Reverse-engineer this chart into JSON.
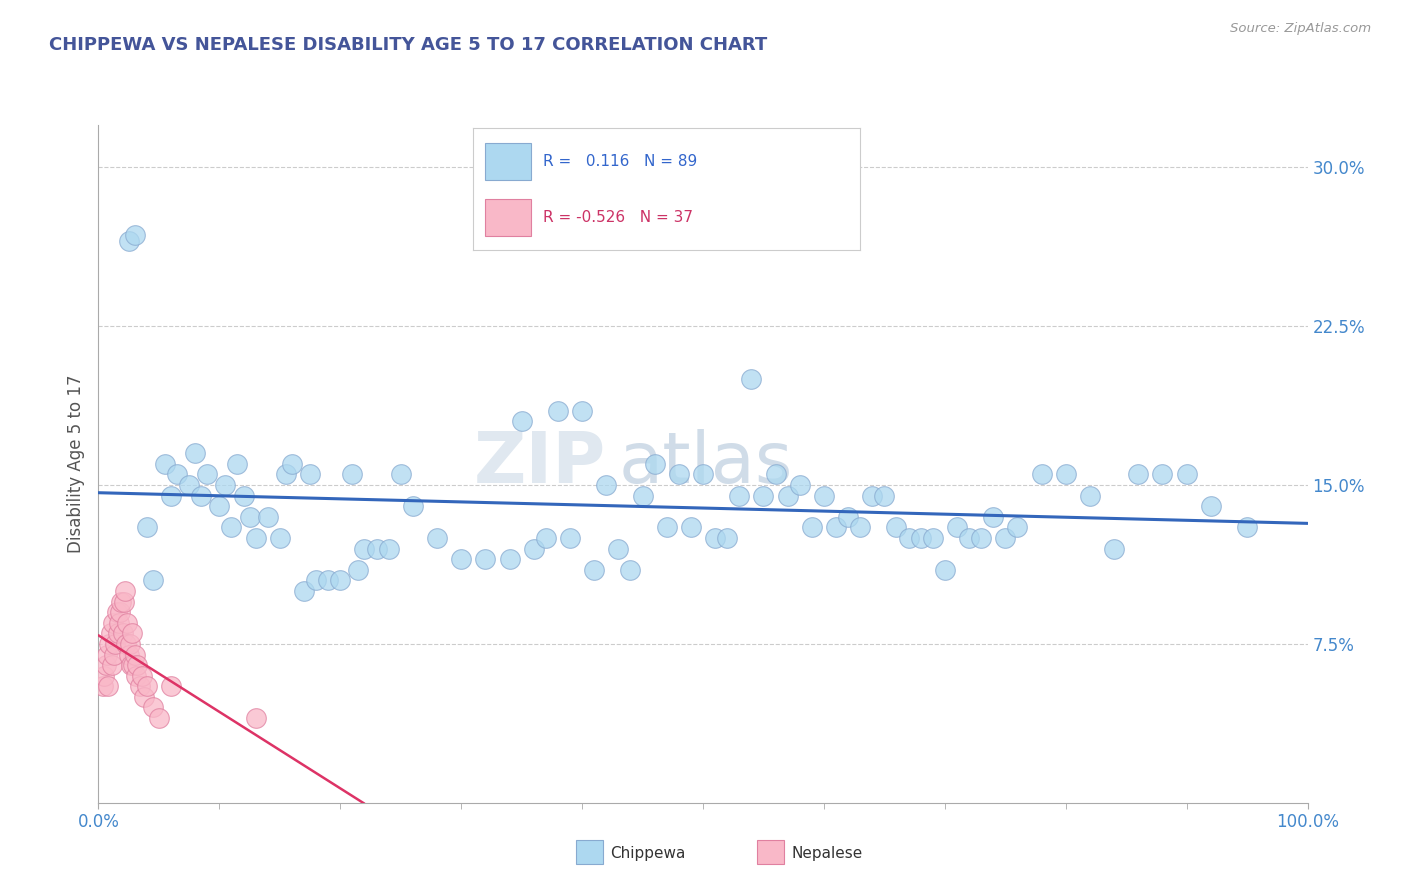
{
  "title": "CHIPPEWA VS NEPALESE DISABILITY AGE 5 TO 17 CORRELATION CHART",
  "source_text": "Source: ZipAtlas.com",
  "ylabel": "Disability Age 5 to 17",
  "xlim": [
    0.0,
    1.0
  ],
  "ylim": [
    0.0,
    0.32
  ],
  "ytick_vals": [
    0.075,
    0.15,
    0.225,
    0.3
  ],
  "ytick_labels": [
    "7.5%",
    "15.0%",
    "22.5%",
    "30.0%"
  ],
  "xtick_vals": [
    0.0,
    1.0
  ],
  "xtick_labels": [
    "0.0%",
    "100.0%"
  ],
  "legend_R_chippewa": "0.116",
  "legend_N_chippewa": "89",
  "legend_R_nepalese": "-0.526",
  "legend_N_nepalese": "37",
  "chippewa_color": "#add8f0",
  "nepalese_color": "#f9b8c8",
  "trendline_chippewa_color": "#3366bb",
  "trendline_nepalese_color": "#dd3366",
  "background_color": "#ffffff",
  "grid_color": "#cccccc",
  "watermark_color": "#e0e8f0",
  "chippewa_x": [
    0.025,
    0.03,
    0.04,
    0.045,
    0.055,
    0.06,
    0.065,
    0.075,
    0.08,
    0.085,
    0.09,
    0.1,
    0.105,
    0.11,
    0.115,
    0.12,
    0.125,
    0.13,
    0.14,
    0.15,
    0.155,
    0.16,
    0.17,
    0.175,
    0.18,
    0.19,
    0.2,
    0.21,
    0.215,
    0.22,
    0.23,
    0.24,
    0.25,
    0.26,
    0.28,
    0.3,
    0.32,
    0.34,
    0.35,
    0.36,
    0.37,
    0.38,
    0.39,
    0.4,
    0.41,
    0.42,
    0.43,
    0.44,
    0.45,
    0.46,
    0.47,
    0.48,
    0.49,
    0.5,
    0.51,
    0.52,
    0.53,
    0.54,
    0.55,
    0.56,
    0.57,
    0.58,
    0.59,
    0.6,
    0.61,
    0.62,
    0.63,
    0.64,
    0.65,
    0.66,
    0.67,
    0.68,
    0.69,
    0.7,
    0.71,
    0.72,
    0.73,
    0.74,
    0.75,
    0.76,
    0.78,
    0.8,
    0.82,
    0.84,
    0.86,
    0.88,
    0.9,
    0.92,
    0.95
  ],
  "chippewa_y": [
    0.265,
    0.268,
    0.13,
    0.105,
    0.16,
    0.145,
    0.155,
    0.15,
    0.165,
    0.145,
    0.155,
    0.14,
    0.15,
    0.13,
    0.16,
    0.145,
    0.135,
    0.125,
    0.135,
    0.125,
    0.155,
    0.16,
    0.1,
    0.155,
    0.105,
    0.105,
    0.105,
    0.155,
    0.11,
    0.12,
    0.12,
    0.12,
    0.155,
    0.14,
    0.125,
    0.115,
    0.115,
    0.115,
    0.18,
    0.12,
    0.125,
    0.185,
    0.125,
    0.185,
    0.11,
    0.15,
    0.12,
    0.11,
    0.145,
    0.16,
    0.13,
    0.155,
    0.13,
    0.155,
    0.125,
    0.125,
    0.145,
    0.2,
    0.145,
    0.155,
    0.145,
    0.15,
    0.13,
    0.145,
    0.13,
    0.135,
    0.13,
    0.145,
    0.145,
    0.13,
    0.125,
    0.125,
    0.125,
    0.11,
    0.13,
    0.125,
    0.125,
    0.135,
    0.125,
    0.13,
    0.155,
    0.155,
    0.145,
    0.12,
    0.155,
    0.155,
    0.155,
    0.14,
    0.13
  ],
  "nepalese_x": [
    0.004,
    0.005,
    0.006,
    0.007,
    0.008,
    0.009,
    0.01,
    0.011,
    0.012,
    0.013,
    0.014,
    0.015,
    0.016,
    0.017,
    0.018,
    0.019,
    0.02,
    0.021,
    0.022,
    0.023,
    0.024,
    0.025,
    0.026,
    0.027,
    0.028,
    0.029,
    0.03,
    0.031,
    0.032,
    0.034,
    0.036,
    0.038,
    0.04,
    0.045,
    0.05,
    0.06,
    0.13
  ],
  "nepalese_y": [
    0.055,
    0.06,
    0.065,
    0.07,
    0.055,
    0.075,
    0.08,
    0.065,
    0.085,
    0.07,
    0.075,
    0.09,
    0.08,
    0.085,
    0.09,
    0.095,
    0.08,
    0.095,
    0.1,
    0.075,
    0.085,
    0.07,
    0.075,
    0.065,
    0.08,
    0.065,
    0.07,
    0.06,
    0.065,
    0.055,
    0.06,
    0.05,
    0.055,
    0.045,
    0.04,
    0.055,
    0.04
  ]
}
